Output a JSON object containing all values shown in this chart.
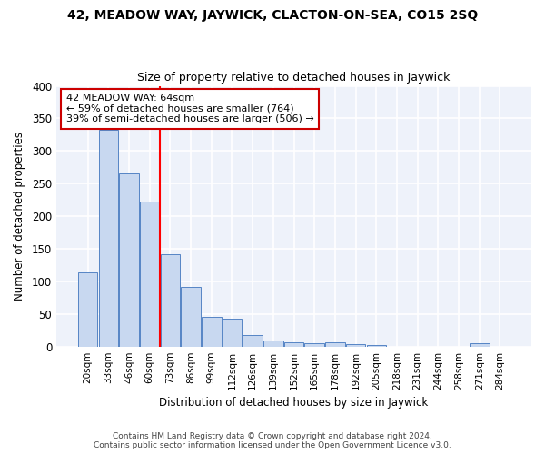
{
  "title": "42, MEADOW WAY, JAYWICK, CLACTON-ON-SEA, CO15 2SQ",
  "subtitle": "Size of property relative to detached houses in Jaywick",
  "xlabel": "Distribution of detached houses by size in Jaywick",
  "ylabel": "Number of detached properties",
  "categories": [
    "20sqm",
    "33sqm",
    "46sqm",
    "60sqm",
    "73sqm",
    "86sqm",
    "99sqm",
    "112sqm",
    "126sqm",
    "139sqm",
    "152sqm",
    "165sqm",
    "178sqm",
    "192sqm",
    "205sqm",
    "218sqm",
    "231sqm",
    "244sqm",
    "258sqm",
    "271sqm",
    "284sqm"
  ],
  "values": [
    114,
    333,
    265,
    222,
    141,
    92,
    46,
    43,
    17,
    10,
    7,
    5,
    7,
    4,
    3,
    0,
    0,
    0,
    0,
    5,
    0
  ],
  "bar_color": "#c8d8f0",
  "bar_edge_color": "#5585c5",
  "background_color": "#eef2fa",
  "grid_color": "#ffffff",
  "annotation_line1": "42 MEADOW WAY: 64sqm",
  "annotation_line2": "← 59% of detached houses are smaller (764)",
  "annotation_line3": "39% of semi-detached houses are larger (506) →",
  "annotation_box_color": "#ffffff",
  "annotation_box_edge": "#cc0000",
  "redline_x": 3.5,
  "ylim": [
    0,
    400
  ],
  "yticks": [
    0,
    50,
    100,
    150,
    200,
    250,
    300,
    350,
    400
  ],
  "footer_line1": "Contains HM Land Registry data © Crown copyright and database right 2024.",
  "footer_line2": "Contains public sector information licensed under the Open Government Licence v3.0."
}
